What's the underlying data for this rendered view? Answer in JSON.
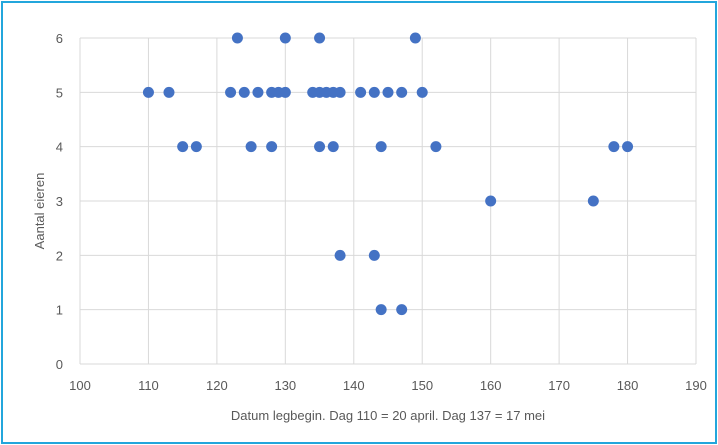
{
  "chart_data": {
    "type": "scatter",
    "xlabel": "Datum legbegin. Dag 110 = 20 april. Dag 137 = 17 mei",
    "ylabel": "Aantal  eieren",
    "xlim": [
      100,
      190
    ],
    "ylim": [
      0,
      6
    ],
    "x_ticks": [
      "100",
      "110",
      "120",
      "130",
      "140",
      "150",
      "160",
      "170",
      "180",
      "190"
    ],
    "y_ticks": [
      "0",
      "1",
      "2",
      "3",
      "4",
      "5",
      "6"
    ],
    "grid": true,
    "marker_color": "#4472c4",
    "series": [
      {
        "points": [
          {
            "x": 110,
            "y": 5
          },
          {
            "x": 113,
            "y": 5
          },
          {
            "x": 115,
            "y": 4
          },
          {
            "x": 117,
            "y": 4
          },
          {
            "x": 122,
            "y": 5
          },
          {
            "x": 123,
            "y": 6
          },
          {
            "x": 124,
            "y": 5
          },
          {
            "x": 125,
            "y": 4
          },
          {
            "x": 126,
            "y": 5
          },
          {
            "x": 128,
            "y": 5
          },
          {
            "x": 128,
            "y": 4
          },
          {
            "x": 129,
            "y": 5
          },
          {
            "x": 130,
            "y": 5
          },
          {
            "x": 130,
            "y": 6
          },
          {
            "x": 134,
            "y": 5
          },
          {
            "x": 135,
            "y": 5
          },
          {
            "x": 135,
            "y": 6
          },
          {
            "x": 135,
            "y": 4
          },
          {
            "x": 136,
            "y": 5
          },
          {
            "x": 137,
            "y": 5
          },
          {
            "x": 137,
            "y": 4
          },
          {
            "x": 138,
            "y": 5
          },
          {
            "x": 138,
            "y": 2
          },
          {
            "x": 141,
            "y": 5
          },
          {
            "x": 143,
            "y": 5
          },
          {
            "x": 143,
            "y": 2
          },
          {
            "x": 144,
            "y": 4
          },
          {
            "x": 144,
            "y": 1
          },
          {
            "x": 145,
            "y": 5
          },
          {
            "x": 147,
            "y": 5
          },
          {
            "x": 147,
            "y": 1
          },
          {
            "x": 149,
            "y": 6
          },
          {
            "x": 150,
            "y": 5
          },
          {
            "x": 152,
            "y": 4
          },
          {
            "x": 160,
            "y": 3
          },
          {
            "x": 175,
            "y": 3
          },
          {
            "x": 178,
            "y": 4
          },
          {
            "x": 180,
            "y": 4
          }
        ]
      }
    ]
  }
}
